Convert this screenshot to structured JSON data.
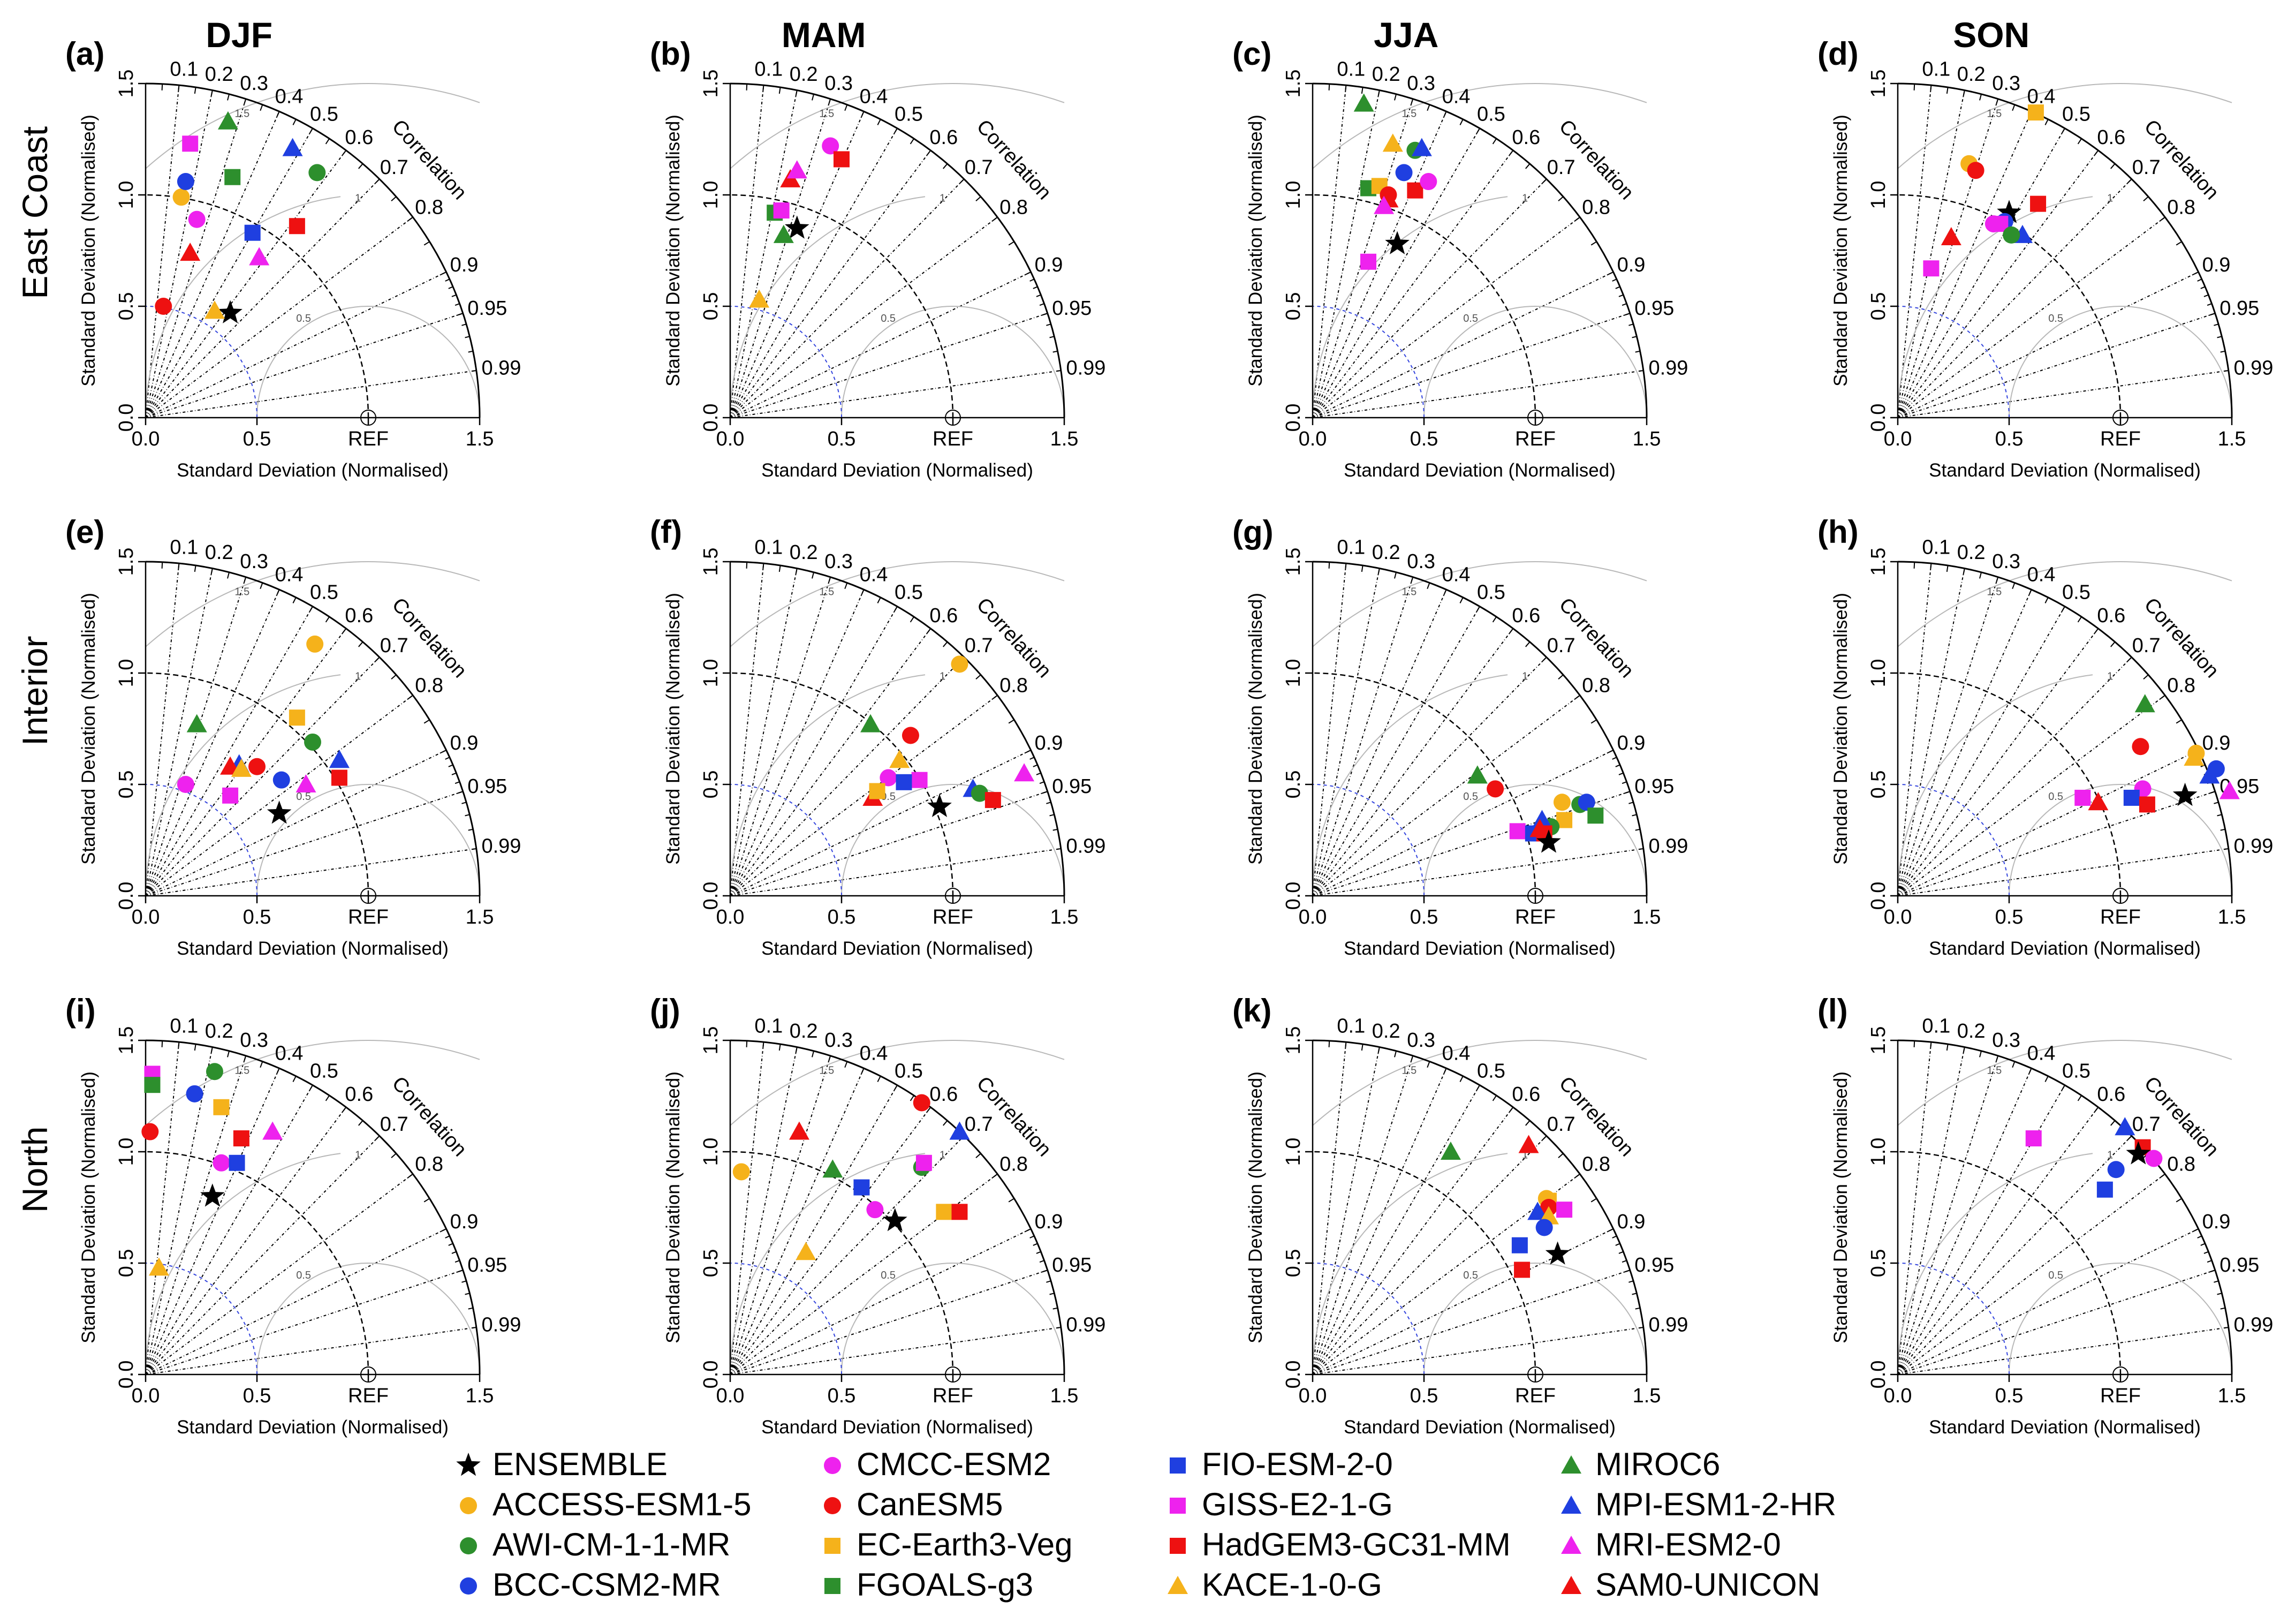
{
  "chart_data": {
    "type": "scatter",
    "subtype": "taylor-diagram",
    "seasons": [
      "DJF",
      "MAM",
      "JJA",
      "SON"
    ],
    "regions": [
      "East Coast",
      "Interior",
      "North"
    ],
    "axis_label": "Standard Deviation (Normalised)",
    "ref_label": "REF",
    "correlation_label": "Correlation",
    "x_ticks": [
      "0.0",
      "0.5",
      "REF",
      "1.5"
    ],
    "y_ticks": [
      "0.0",
      "0.5",
      "1.0",
      "1.5"
    ],
    "std_range": [
      0,
      1.5
    ],
    "correlation_ticks": [
      "0.1",
      "0.2",
      "0.3",
      "0.4",
      "0.5",
      "0.6",
      "0.7",
      "0.8",
      "0.9",
      "0.95",
      "0.99"
    ],
    "rms_labels": [
      "0.5",
      "1",
      "1.5"
    ],
    "colors": {
      "ENSEMBLE": "#000000",
      "ACCESS-ESM1-5": "#f5b21b",
      "AWI-CM-1-1-MR": "#2d8f2d",
      "BCC-CSM2-MR": "#1f3fe0",
      "CMCC-ESM2": "#ee22ee",
      "CanESM5": "#ee1111",
      "EC-Earth3-Veg": "#f5b21b",
      "FGOALS-g3": "#2d8f2d",
      "FIO-ESM-2-0": "#1f3fe0",
      "GISS-E2-1-G": "#ee22ee",
      "HadGEM3-GC31-MM": "#ee1111",
      "KACE-1-0-G": "#f5b21b",
      "MIROC6": "#2d8f2d",
      "MPI-ESM1-2-HR": "#1f3fe0",
      "MRI-ESM2-0": "#ee22ee",
      "SAM0-UNICON": "#ee1111"
    },
    "shapes": {
      "ENSEMBLE": "star",
      "ACCESS-ESM1-5": "circle",
      "AWI-CM-1-1-MR": "circle",
      "BCC-CSM2-MR": "circle",
      "CMCC-ESM2": "circle",
      "CanESM5": "circle",
      "EC-Earth3-Veg": "square",
      "FGOALS-g3": "square",
      "FIO-ESM-2-0": "square",
      "GISS-E2-1-G": "square",
      "HadGEM3-GC31-MM": "square",
      "KACE-1-0-G": "triangle",
      "MIROC6": "triangle",
      "MPI-ESM1-2-HR": "triangle",
      "MRI-ESM2-0": "triangle",
      "SAM0-UNICON": "triangle"
    },
    "legend_columns": [
      [
        "ENSEMBLE",
        "ACCESS-ESM1-5",
        "AWI-CM-1-1-MR",
        "BCC-CSM2-MR"
      ],
      [
        "CMCC-ESM2",
        "CanESM5",
        "EC-Earth3-Veg",
        "FGOALS-g3"
      ],
      [
        "FIO-ESM-2-0",
        "GISS-E2-1-G",
        "HadGEM3-GC31-MM",
        "KACE-1-0-G"
      ],
      [
        "MIROC6",
        "MPI-ESM1-2-HR",
        "MRI-ESM2-0",
        "SAM0-UNICON"
      ]
    ],
    "panels": [
      {
        "tag": "(a)",
        "points": [
          {
            "m": "ENSEMBLE",
            "x": 0.38,
            "y": 0.47
          },
          {
            "m": "ACCESS-ESM1-5",
            "x": 0.16,
            "y": 0.99
          },
          {
            "m": "AWI-CM-1-1-MR",
            "x": 0.77,
            "y": 1.1
          },
          {
            "m": "BCC-CSM2-MR",
            "x": 0.18,
            "y": 1.06
          },
          {
            "m": "CMCC-ESM2",
            "x": 0.23,
            "y": 0.89
          },
          {
            "m": "CanESM5",
            "x": 0.08,
            "y": 0.5
          },
          {
            "m": "FGOALS-g3",
            "x": 0.39,
            "y": 1.08
          },
          {
            "m": "FIO-ESM-2-0",
            "x": 0.48,
            "y": 0.83
          },
          {
            "m": "GISS-E2-1-G",
            "x": 0.2,
            "y": 1.23
          },
          {
            "m": "HadGEM3-GC31-MM",
            "x": 0.68,
            "y": 0.86
          },
          {
            "m": "KACE-1-0-G",
            "x": 0.31,
            "y": 0.48
          },
          {
            "m": "MIROC6",
            "x": 0.37,
            "y": 1.33
          },
          {
            "m": "MPI-ESM1-2-HR",
            "x": 0.66,
            "y": 1.21
          },
          {
            "m": "MRI-ESM2-0",
            "x": 0.51,
            "y": 0.72
          },
          {
            "m": "SAM0-UNICON",
            "x": 0.2,
            "y": 0.74
          }
        ]
      },
      {
        "tag": "(b)",
        "points": [
          {
            "m": "ENSEMBLE",
            "x": 0.3,
            "y": 0.85
          },
          {
            "m": "CMCC-ESM2",
            "x": 0.45,
            "y": 1.22
          },
          {
            "m": "HadGEM3-GC31-MM",
            "x": 0.5,
            "y": 1.16
          },
          {
            "m": "SAM0-UNICON",
            "x": 0.27,
            "y": 1.07
          },
          {
            "m": "MRI-ESM2-0",
            "x": 0.3,
            "y": 1.11
          },
          {
            "m": "FGOALS-g3",
            "x": 0.2,
            "y": 0.92
          },
          {
            "m": "GISS-E2-1-G",
            "x": 0.23,
            "y": 0.93
          },
          {
            "m": "MIROC6",
            "x": 0.24,
            "y": 0.82
          },
          {
            "m": "KACE-1-0-G",
            "x": 0.13,
            "y": 0.53
          }
        ]
      },
      {
        "tag": "(c)",
        "points": [
          {
            "m": "MIROC6",
            "x": 0.23,
            "y": 1.41
          },
          {
            "m": "KACE-1-0-G",
            "x": 0.36,
            "y": 1.23
          },
          {
            "m": "AWI-CM-1-1-MR",
            "x": 0.46,
            "y": 1.2
          },
          {
            "m": "MPI-ESM1-2-HR",
            "x": 0.49,
            "y": 1.21
          },
          {
            "m": "BCC-CSM2-MR",
            "x": 0.41,
            "y": 1.1
          },
          {
            "m": "FGOALS-g3",
            "x": 0.25,
            "y": 1.03
          },
          {
            "m": "EC-Earth3-Veg",
            "x": 0.3,
            "y": 1.04
          },
          {
            "m": "HadGEM3-GC31-MM",
            "x": 0.46,
            "y": 1.02
          },
          {
            "m": "CMCC-ESM2",
            "x": 0.52,
            "y": 1.06
          },
          {
            "m": "CanESM5",
            "x": 0.34,
            "y": 1.0
          },
          {
            "m": "SAM0-UNICON",
            "x": 0.34,
            "y": 0.98
          },
          {
            "m": "MRI-ESM2-0",
            "x": 0.32,
            "y": 0.95
          },
          {
            "m": "ENSEMBLE",
            "x": 0.38,
            "y": 0.78
          },
          {
            "m": "GISS-E2-1-G",
            "x": 0.25,
            "y": 0.7
          }
        ]
      },
      {
        "tag": "(d)",
        "points": [
          {
            "m": "EC-Earth3-Veg",
            "x": 0.62,
            "y": 1.37
          },
          {
            "m": "ACCESS-ESM1-5",
            "x": 0.32,
            "y": 1.14
          },
          {
            "m": "CanESM5",
            "x": 0.35,
            "y": 1.11
          },
          {
            "m": "HadGEM3-GC31-MM",
            "x": 0.63,
            "y": 0.96
          },
          {
            "m": "ENSEMBLE",
            "x": 0.5,
            "y": 0.92
          },
          {
            "m": "BCC-CSM2-MR",
            "x": 0.48,
            "y": 0.88
          },
          {
            "m": "CMCC-ESM2",
            "x": 0.43,
            "y": 0.87
          },
          {
            "m": "GISS-E2-1-G",
            "x": 0.46,
            "y": 0.87
          },
          {
            "m": "MPI-ESM1-2-HR",
            "x": 0.56,
            "y": 0.82
          },
          {
            "m": "AWI-CM-1-1-MR",
            "x": 0.51,
            "y": 0.82
          },
          {
            "m": "SAM0-UNICON",
            "x": 0.24,
            "y": 0.81
          },
          {
            "m": "GISS-E2-1-G",
            "x": 0.15,
            "y": 0.67
          }
        ]
      },
      {
        "tag": "(e)",
        "points": [
          {
            "m": "ACCESS-ESM1-5",
            "x": 0.76,
            "y": 1.13
          },
          {
            "m": "EC-Earth3-Veg",
            "x": 0.68,
            "y": 0.8
          },
          {
            "m": "MIROC6",
            "x": 0.23,
            "y": 0.77
          },
          {
            "m": "AWI-CM-1-1-MR",
            "x": 0.75,
            "y": 0.69
          },
          {
            "m": "MPI-ESM1-2-HR",
            "x": 0.87,
            "y": 0.61
          },
          {
            "m": "BCC-CSM2-MR",
            "x": 0.61,
            "y": 0.52
          },
          {
            "m": "HadGEM3-GC31-MM",
            "x": 0.87,
            "y": 0.53
          },
          {
            "m": "CanESM5",
            "x": 0.5,
            "y": 0.58
          },
          {
            "m": "MPI-ESM1-2-HR",
            "x": 0.42,
            "y": 0.59
          },
          {
            "m": "SAM0-UNICON",
            "x": 0.38,
            "y": 0.58
          },
          {
            "m": "KACE-1-0-G",
            "x": 0.43,
            "y": 0.57
          },
          {
            "m": "CMCC-ESM2",
            "x": 0.18,
            "y": 0.5
          },
          {
            "m": "GISS-E2-1-G",
            "x": 0.38,
            "y": 0.45
          },
          {
            "m": "MRI-ESM2-0",
            "x": 0.72,
            "y": 0.5
          },
          {
            "m": "ENSEMBLE",
            "x": 0.6,
            "y": 0.37
          }
        ]
      },
      {
        "tag": "(f)",
        "points": [
          {
            "m": "ACCESS-ESM1-5",
            "x": 1.03,
            "y": 1.04
          },
          {
            "m": "MIROC6",
            "x": 0.63,
            "y": 0.77
          },
          {
            "m": "CanESM5",
            "x": 0.81,
            "y": 0.72
          },
          {
            "m": "KACE-1-0-G",
            "x": 0.76,
            "y": 0.61
          },
          {
            "m": "CMCC-ESM2",
            "x": 0.71,
            "y": 0.53
          },
          {
            "m": "GISS-E2-1-G",
            "x": 0.85,
            "y": 0.52
          },
          {
            "m": "FIO-ESM-2-0",
            "x": 0.78,
            "y": 0.51
          },
          {
            "m": "MPI-ESM1-2-HR",
            "x": 1.09,
            "y": 0.48
          },
          {
            "m": "AWI-CM-1-1-MR",
            "x": 1.12,
            "y": 0.46
          },
          {
            "m": "HadGEM3-GC31-MM",
            "x": 1.18,
            "y": 0.43
          },
          {
            "m": "MRI-ESM2-0",
            "x": 1.32,
            "y": 0.55
          },
          {
            "m": "SAM0-UNICON",
            "x": 0.64,
            "y": 0.44
          },
          {
            "m": "EC-Earth3-Veg",
            "x": 0.66,
            "y": 0.47
          },
          {
            "m": "ENSEMBLE",
            "x": 0.94,
            "y": 0.4
          }
        ]
      },
      {
        "tag": "(g)",
        "points": [
          {
            "m": "MIROC6",
            "x": 0.74,
            "y": 0.54
          },
          {
            "m": "CanESM5",
            "x": 0.82,
            "y": 0.48
          },
          {
            "m": "ACCESS-ESM1-5",
            "x": 1.12,
            "y": 0.42
          },
          {
            "m": "AWI-CM-1-1-MR",
            "x": 1.2,
            "y": 0.41
          },
          {
            "m": "BCC-CSM2-MR",
            "x": 1.23,
            "y": 0.42
          },
          {
            "m": "EC-Earth3-Veg",
            "x": 1.13,
            "y": 0.34
          },
          {
            "m": "FGOALS-g3",
            "x": 1.27,
            "y": 0.36
          },
          {
            "m": "AWI-CM-1-1-MR",
            "x": 1.07,
            "y": 0.31
          },
          {
            "m": "MPI-ESM1-2-HR",
            "x": 1.03,
            "y": 0.34
          },
          {
            "m": "GISS-E2-1-G",
            "x": 0.92,
            "y": 0.29
          },
          {
            "m": "FIO-ESM-2-0",
            "x": 0.99,
            "y": 0.28
          },
          {
            "m": "HadGEM3-GC31-MM",
            "x": 1.04,
            "y": 0.28
          },
          {
            "m": "SAM0-UNICON",
            "x": 1.02,
            "y": 0.3
          },
          {
            "m": "ENSEMBLE",
            "x": 1.06,
            "y": 0.24
          }
        ]
      },
      {
        "tag": "(h)",
        "points": [
          {
            "m": "MIROC6",
            "x": 1.11,
            "y": 0.86
          },
          {
            "m": "CanESM5",
            "x": 1.09,
            "y": 0.67
          },
          {
            "m": "ACCESS-ESM1-5",
            "x": 1.34,
            "y": 0.64
          },
          {
            "m": "KACE-1-0-G",
            "x": 1.33,
            "y": 0.62
          },
          {
            "m": "BCC-CSM2-MR",
            "x": 1.43,
            "y": 0.57
          },
          {
            "m": "MPI-ESM1-2-HR",
            "x": 1.4,
            "y": 0.54
          },
          {
            "m": "CMCC-ESM2",
            "x": 1.1,
            "y": 0.48
          },
          {
            "m": "MRI-ESM2-0",
            "x": 1.49,
            "y": 0.47
          },
          {
            "m": "ENSEMBLE",
            "x": 1.29,
            "y": 0.45
          },
          {
            "m": "FIO-ESM-2-0",
            "x": 1.05,
            "y": 0.44
          },
          {
            "m": "HadGEM3-GC31-MM",
            "x": 1.12,
            "y": 0.41
          },
          {
            "m": "GISS-E2-1-G",
            "x": 0.83,
            "y": 0.44
          },
          {
            "m": "SAM0-UNICON",
            "x": 0.9,
            "y": 0.42
          }
        ]
      },
      {
        "tag": "(i)",
        "points": [
          {
            "m": "GISS-E2-1-G",
            "x": 0.03,
            "y": 1.35
          },
          {
            "m": "FGOALS-g3",
            "x": 0.03,
            "y": 1.3
          },
          {
            "m": "AWI-CM-1-1-MR",
            "x": 0.31,
            "y": 1.36
          },
          {
            "m": "BCC-CSM2-MR",
            "x": 0.22,
            "y": 1.26
          },
          {
            "m": "EC-Earth3-Veg",
            "x": 0.34,
            "y": 1.2
          },
          {
            "m": "CanESM5",
            "x": 0.02,
            "y": 1.09
          },
          {
            "m": "MRI-ESM2-0",
            "x": 0.57,
            "y": 1.09
          },
          {
            "m": "HadGEM3-GC31-MM",
            "x": 0.43,
            "y": 1.06
          },
          {
            "m": "CMCC-ESM2",
            "x": 0.34,
            "y": 0.95
          },
          {
            "m": "FIO-ESM-2-0",
            "x": 0.41,
            "y": 0.95
          },
          {
            "m": "ENSEMBLE",
            "x": 0.3,
            "y": 0.8
          },
          {
            "m": "KACE-1-0-G",
            "x": 0.06,
            "y": 0.48
          }
        ]
      },
      {
        "tag": "(j)",
        "points": [
          {
            "m": "CanESM5",
            "x": 0.86,
            "y": 1.22
          },
          {
            "m": "MPI-ESM1-2-HR",
            "x": 1.03,
            "y": 1.09
          },
          {
            "m": "SAM0-UNICON",
            "x": 0.31,
            "y": 1.09
          },
          {
            "m": "AWI-CM-1-1-MR",
            "x": 0.86,
            "y": 0.93
          },
          {
            "m": "GISS-E2-1-G",
            "x": 0.87,
            "y": 0.95
          },
          {
            "m": "MIROC6",
            "x": 0.46,
            "y": 0.92
          },
          {
            "m": "ACCESS-ESM1-5",
            "x": 0.05,
            "y": 0.91
          },
          {
            "m": "FIO-ESM-2-0",
            "x": 0.59,
            "y": 0.84
          },
          {
            "m": "CMCC-ESM2",
            "x": 0.65,
            "y": 0.74
          },
          {
            "m": "EC-Earth3-Veg",
            "x": 0.96,
            "y": 0.73
          },
          {
            "m": "HadGEM3-GC31-MM",
            "x": 1.03,
            "y": 0.73
          },
          {
            "m": "ENSEMBLE",
            "x": 0.74,
            "y": 0.69
          },
          {
            "m": "KACE-1-0-G",
            "x": 0.34,
            "y": 0.55
          }
        ]
      },
      {
        "tag": "(k)",
        "points": [
          {
            "m": "MIROC6",
            "x": 0.62,
            "y": 1.0
          },
          {
            "m": "SAM0-UNICON",
            "x": 0.97,
            "y": 1.03
          },
          {
            "m": "EC-Earth3-Veg",
            "x": 1.06,
            "y": 0.78
          },
          {
            "m": "ACCESS-ESM1-5",
            "x": 1.05,
            "y": 0.79
          },
          {
            "m": "CanESM5",
            "x": 1.06,
            "y": 0.75
          },
          {
            "m": "GISS-E2-1-G",
            "x": 1.13,
            "y": 0.74
          },
          {
            "m": "MPI-ESM1-2-HR",
            "x": 1.01,
            "y": 0.73
          },
          {
            "m": "KACE-1-0-G",
            "x": 1.06,
            "y": 0.71
          },
          {
            "m": "BCC-CSM2-MR",
            "x": 1.04,
            "y": 0.66
          },
          {
            "m": "FIO-ESM-2-0",
            "x": 0.93,
            "y": 0.58
          },
          {
            "m": "ENSEMBLE",
            "x": 1.1,
            "y": 0.54
          },
          {
            "m": "HadGEM3-GC31-MM",
            "x": 0.94,
            "y": 0.47
          }
        ]
      },
      {
        "tag": "(l)",
        "points": [
          {
            "m": "GISS-E2-1-G",
            "x": 0.61,
            "y": 1.06
          },
          {
            "m": "MPI-ESM1-2-HR",
            "x": 1.02,
            "y": 1.11
          },
          {
            "m": "HadGEM3-GC31-MM",
            "x": 1.1,
            "y": 1.02
          },
          {
            "m": "ENSEMBLE",
            "x": 1.08,
            "y": 0.99
          },
          {
            "m": "CMCC-ESM2",
            "x": 1.15,
            "y": 0.97
          },
          {
            "m": "BCC-CSM2-MR",
            "x": 0.98,
            "y": 0.92
          },
          {
            "m": "FIO-ESM-2-0",
            "x": 0.93,
            "y": 0.83
          }
        ]
      }
    ]
  }
}
